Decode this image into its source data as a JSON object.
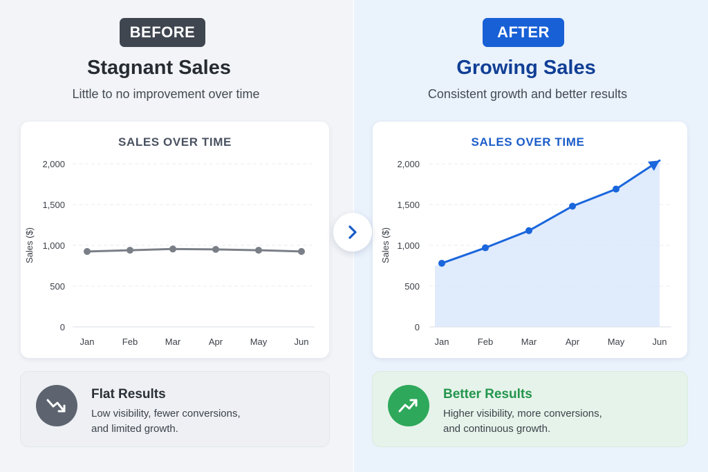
{
  "before": {
    "badge": "BEFORE",
    "headline": "Stagnant Sales",
    "subline": "Little to no improvement over time",
    "result_title": "Flat Results",
    "result_desc_1": "Low visibility, fewer conversions,",
    "result_desc_2": "and limited growth.",
    "icon": "trend-down-icon"
  },
  "after": {
    "badge": "AFTER",
    "headline": "Growing Sales",
    "subline": "Consistent growth and better results",
    "result_title": "Better Results",
    "result_desc_1": "Higher visibility, more conversions,",
    "result_desc_2": "and continuous growth.",
    "icon": "trend-up-icon"
  },
  "navigation": {
    "icon": "chevron-right-icon"
  },
  "colors": {
    "before_line": "#7a7f87",
    "after_line": "#1a66dc",
    "after_area": "#dbe8fb",
    "before_title": "#4a5260",
    "after_title": "#1a5cc8"
  },
  "chart_data": [
    {
      "type": "line",
      "title": "SALES OVER TIME",
      "xlabel": "",
      "ylabel": "Sales ($)",
      "categories": [
        "Jan",
        "Feb",
        "Mar",
        "Apr",
        "May",
        "Jun"
      ],
      "yticks": [
        "0",
        "500",
        "1,000",
        "1,500",
        "2,000"
      ],
      "ylim": [
        0,
        2000
      ],
      "grid": true,
      "series": [
        {
          "values": [
            925,
            940,
            955,
            950,
            940,
            925
          ]
        }
      ]
    },
    {
      "type": "area",
      "title": "SALES OVER TIME",
      "xlabel": "",
      "ylabel": "Sales ($)",
      "categories": [
        "Jan",
        "Feb",
        "Mar",
        "Apr",
        "May",
        "Jun"
      ],
      "yticks": [
        "0",
        "500",
        "1,000",
        "1,500",
        "2,000"
      ],
      "ylim": [
        0,
        2000
      ],
      "grid": true,
      "series": [
        {
          "values": [
            780,
            970,
            1180,
            1480,
            1690,
            2040
          ]
        }
      ]
    }
  ]
}
